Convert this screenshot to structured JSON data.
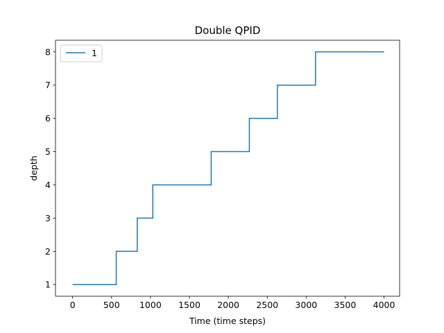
{
  "chart_data": {
    "type": "line",
    "title": "Double QPID",
    "xlabel": "Time (time steps)",
    "ylabel": "depth",
    "xlim": [
      -220,
      4200
    ],
    "ylim": [
      0.65,
      8.35
    ],
    "xticks": [
      0,
      500,
      1000,
      1500,
      2000,
      2500,
      3000,
      3500,
      4000
    ],
    "yticks": [
      1,
      2,
      3,
      4,
      5,
      6,
      7,
      8
    ],
    "grid": false,
    "legend_position": "top-left",
    "step": "post",
    "series": [
      {
        "name": "1",
        "color": "#1f77b4",
        "x": [
          0,
          560,
          830,
          1030,
          1780,
          2270,
          2630,
          3120,
          4000
        ],
        "y": [
          1,
          2,
          3,
          4,
          5,
          6,
          7,
          8,
          8
        ]
      }
    ]
  }
}
